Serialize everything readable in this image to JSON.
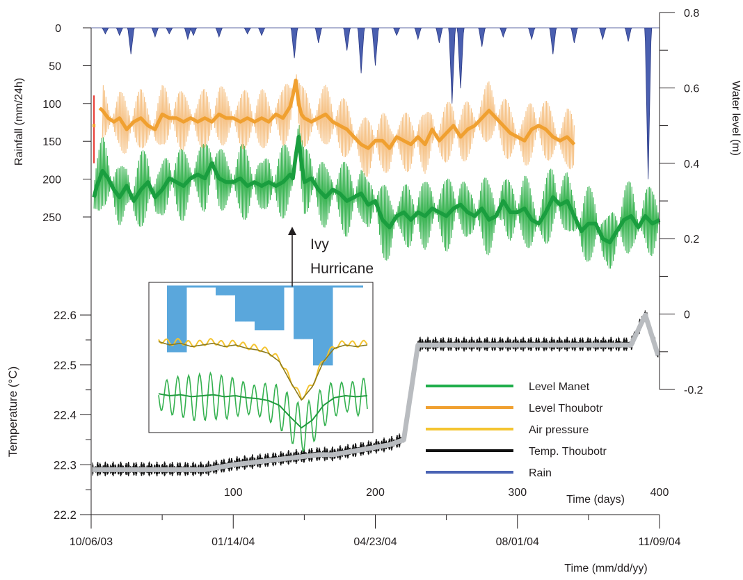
{
  "chart_data": {
    "type": "line",
    "axes": {
      "rain_left": {
        "label": "Rainfall (mm/24h)",
        "range": [
          0,
          250
        ],
        "ticks": [
          0,
          50,
          100,
          150,
          200,
          250
        ],
        "inverted": true
      },
      "temp_left": {
        "label": "Temperature (°C)",
        "range": [
          22.2,
          22.6
        ],
        "ticks": [
          22.2,
          22.3,
          22.4,
          22.5,
          22.6
        ]
      },
      "level_right": {
        "label": "Water level (m)",
        "range": [
          -0.2,
          0.8
        ],
        "ticks": [
          -0.2,
          0,
          0.2,
          0.4,
          0.6,
          0.8
        ]
      },
      "days_top": {
        "label": "Time (days)",
        "range": [
          0,
          400
        ],
        "ticks": [
          100,
          200,
          300,
          400
        ]
      },
      "date_bottom": {
        "label": "Time (mm/dd/yy)",
        "ticks": [
          "10/06/03",
          "01/14/04",
          "04/23/04",
          "08/01/04",
          "11/09/04"
        ],
        "tick_days": [
          0,
          100,
          200,
          300,
          400
        ]
      }
    },
    "legend_position": "bottom-right",
    "series": [
      {
        "name": "Level Manet",
        "color": "#1fae4b",
        "x_days": [
          0,
          4,
          8,
          12,
          16,
          20,
          25,
          30,
          35,
          40,
          45,
          50,
          55,
          60,
          65,
          70,
          75,
          80,
          85,
          90,
          95,
          100,
          105,
          110,
          115,
          120,
          125,
          130,
          135,
          140,
          142,
          144,
          146,
          148,
          150,
          155,
          160,
          165,
          170,
          175,
          180,
          185,
          190,
          195,
          200,
          205,
          210,
          215,
          220,
          225,
          230,
          235,
          240,
          245,
          250,
          255,
          260,
          265,
          270,
          275,
          280,
          285,
          290,
          295,
          300,
          305,
          310,
          315,
          320,
          325,
          330,
          335,
          340,
          345,
          350,
          355,
          360,
          365,
          370,
          375,
          380,
          385,
          390,
          395,
          400
        ],
        "y_m": [
          0.28,
          0.34,
          0.38,
          0.36,
          0.33,
          0.31,
          0.34,
          0.3,
          0.33,
          0.35,
          0.31,
          0.33,
          0.36,
          0.35,
          0.34,
          0.36,
          0.37,
          0.36,
          0.4,
          0.36,
          0.35,
          0.35,
          0.36,
          0.34,
          0.35,
          0.34,
          0.35,
          0.34,
          0.35,
          0.37,
          0.36,
          0.42,
          0.47,
          0.4,
          0.35,
          0.36,
          0.33,
          0.31,
          0.33,
          0.32,
          0.3,
          0.31,
          0.32,
          0.29,
          0.3,
          0.25,
          0.23,
          0.26,
          0.27,
          0.25,
          0.27,
          0.26,
          0.28,
          0.27,
          0.26,
          0.28,
          0.29,
          0.27,
          0.26,
          0.28,
          0.25,
          0.26,
          0.3,
          0.27,
          0.27,
          0.28,
          0.25,
          0.24,
          0.27,
          0.31,
          0.29,
          0.3,
          0.26,
          0.22,
          0.24,
          0.24,
          0.2,
          0.19,
          0.22,
          0.25,
          0.26,
          0.23,
          0.26,
          0.24,
          0.25
        ],
        "oscillation_m": 0.08
      },
      {
        "name": "Level Thoubotr",
        "color": "#f0a030",
        "x_days": [
          0,
          3,
          4,
          5,
          8,
          12,
          16,
          20,
          25,
          30,
          35,
          40,
          45,
          50,
          55,
          60,
          65,
          70,
          75,
          80,
          85,
          90,
          95,
          100,
          105,
          110,
          115,
          120,
          125,
          130,
          135,
          140,
          142,
          144,
          146,
          148,
          150,
          155,
          160,
          165,
          170,
          175,
          180,
          185,
          190,
          195,
          200,
          205,
          210,
          215,
          220,
          225,
          230,
          235,
          240,
          245,
          250,
          255,
          260,
          265,
          270,
          275,
          280,
          285,
          290,
          295,
          300,
          305,
          310,
          315,
          320,
          325,
          330,
          335,
          340,
          342,
          344,
          346,
          348,
          350,
          355,
          360,
          365,
          370,
          375,
          380,
          385,
          390,
          395,
          400
        ],
        "y_m": [
          0.5,
          0.5,
          null,
          0.55,
          0.54,
          0.52,
          0.51,
          0.52,
          0.49,
          0.51,
          0.52,
          0.5,
          0.49,
          0.53,
          0.52,
          0.52,
          0.51,
          0.52,
          0.51,
          0.52,
          0.51,
          0.53,
          0.52,
          0.52,
          0.51,
          0.52,
          0.51,
          0.52,
          0.51,
          0.53,
          0.52,
          0.55,
          0.58,
          0.62,
          0.56,
          0.53,
          0.52,
          0.51,
          0.52,
          0.53,
          0.51,
          0.5,
          0.49,
          0.47,
          0.45,
          0.44,
          0.46,
          0.46,
          0.44,
          0.47,
          0.46,
          0.45,
          0.47,
          0.45,
          0.49,
          0.46,
          0.48,
          0.5,
          0.47,
          0.49,
          0.5,
          0.52,
          0.54,
          0.52,
          0.5,
          0.48,
          0.47,
          0.46,
          0.49,
          0.5,
          0.49,
          0.47,
          0.46,
          0.47,
          0.45,
          0.46,
          0.46,
          0.46,
          0.46,
          0.46,
          0.46,
          0.46,
          0.46,
          0.46,
          0.46,
          0.46,
          0.46,
          0.46,
          0.46,
          0.46
        ],
        "x_end_days": 340,
        "oscillation_m": 0.07
      },
      {
        "name": "Air pressure",
        "color": "#f4c430",
        "x_days": [],
        "y": []
      },
      {
        "name": "Temp. Thoubotr",
        "color": "#111111",
        "x_days": [
          0,
          80,
          100,
          160,
          170,
          190,
          210,
          220,
          230,
          350,
          360,
          370,
          380,
          390,
          400
        ],
        "y_c": [
          22.29,
          22.29,
          22.3,
          22.32,
          22.32,
          22.33,
          22.34,
          22.35,
          22.54,
          22.54,
          22.54,
          22.54,
          22.54,
          22.6,
          22.51
        ]
      },
      {
        "name": "Rain",
        "color": "#3e4fa3",
        "spikes_days": [
          10,
          20,
          28,
          45,
          55,
          68,
          72,
          90,
          110,
          120,
          143,
          160,
          180,
          190,
          200,
          215,
          230,
          245,
          254,
          260,
          275,
          290,
          310,
          325,
          340,
          360,
          378,
          392
        ],
        "spikes_mm": [
          8,
          10,
          35,
          12,
          8,
          15,
          10,
          12,
          8,
          10,
          40,
          20,
          30,
          60,
          50,
          10,
          15,
          20,
          100,
          80,
          25,
          12,
          15,
          35,
          20,
          15,
          18,
          200
        ]
      }
    ],
    "annotations": [
      "Ivy",
      "Hurricane"
    ]
  },
  "legend": {
    "items": [
      {
        "label": "Level Manet",
        "color": "#1fae4b"
      },
      {
        "label": "Level Thoubotr",
        "color": "#f0a030"
      },
      {
        "label": "Air pressure",
        "color": "#f4c430"
      },
      {
        "label": "Temp. Thoubotr",
        "color": "#111111"
      },
      {
        "label": "Rain",
        "color": "#4a63b4"
      }
    ]
  },
  "inset": {
    "bar_color": "#5aa7dc",
    "bars": [
      0.15,
      0.15,
      0.0,
      0.0,
      0.0,
      0.02,
      0.02,
      0.08,
      0.08,
      0.1,
      0.1,
      0.1,
      0.0,
      0.12,
      0.12,
      0.18,
      0.18,
      0.0,
      0.0,
      0.0
    ],
    "pressure_series": [
      0.28,
      0.3,
      0.29,
      0.31,
      0.3,
      0.29,
      0.31,
      0.3,
      0.32,
      0.33,
      0.35,
      0.4,
      0.52,
      0.63,
      0.55,
      0.4,
      0.32,
      0.3,
      0.31,
      0.3
    ],
    "oscillation_amplitude": 0.07
  }
}
